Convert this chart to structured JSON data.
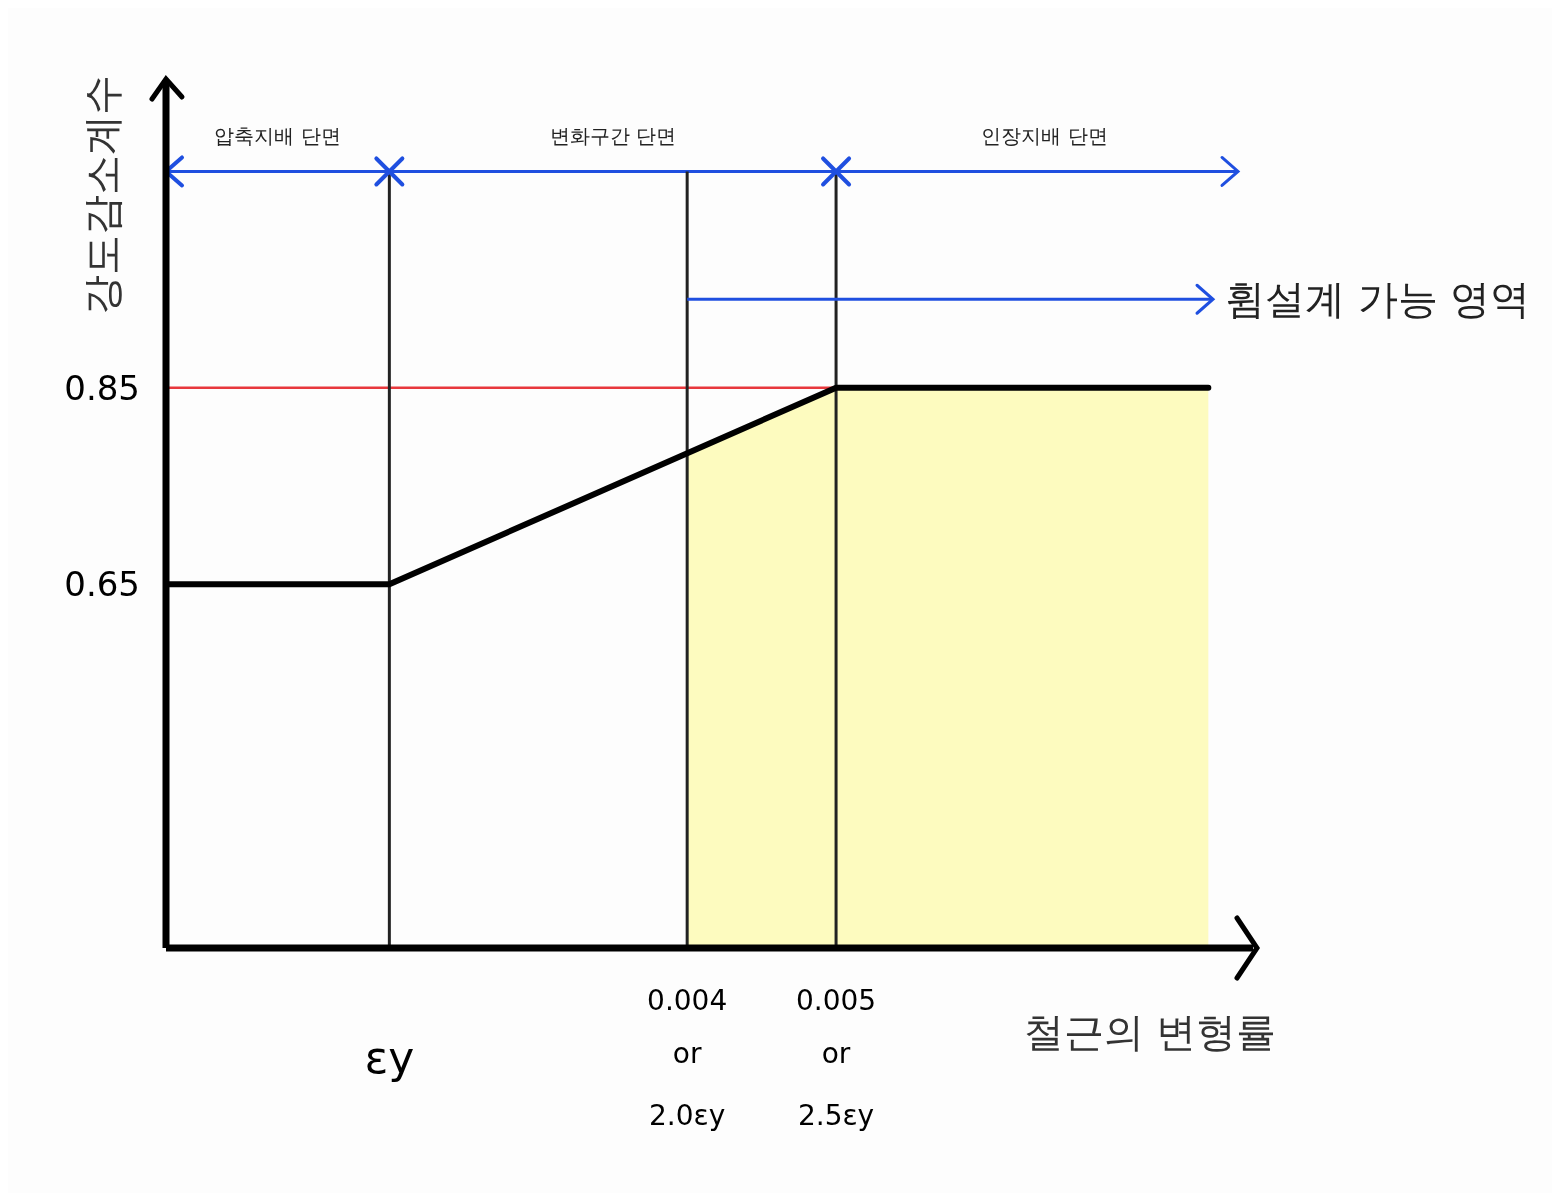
{
  "chart_data": {
    "type": "line",
    "xlabel": "철근의 변형률",
    "ylabel": "강도감소계수",
    "x": [
      0.0005,
      0.002,
      0.005,
      0.0075
    ],
    "series": [
      {
        "color": "#000000",
        "values": [
          0.65,
          0.65,
          0.85,
          0.85
        ]
      },
      {
        "type": "area",
        "color": "#fdfbbf",
        "x": [
          0.004,
          0.005,
          0.0075
        ],
        "values": [
          0.783,
          0.85,
          0.85
        ]
      }
    ],
    "xlim": [
      0.0005,
      0.0078
    ],
    "ylim": [
      0.28,
      1.16
    ],
    "xticks": [
      0.004,
      0.005
    ],
    "yticks": [
      0.65,
      0.85
    ],
    "ref_lines": [
      {
        "axis": "y",
        "value": 0.85,
        "color": "#e8383d"
      },
      {
        "axis": "y",
        "value": 1.07,
        "color": "#1f4fe0"
      },
      {
        "axis": "x",
        "value": 0.002,
        "color": "#222222"
      },
      {
        "axis": "x",
        "value": 0.004,
        "color": "#222222"
      },
      {
        "axis": "x",
        "value": 0.005,
        "color": "#222222"
      }
    ],
    "annotations": [
      "압축지배 단면",
      "변화구간 단면",
      "인장지배 단면",
      {
        "text": "휨설계 가능 영역",
        "x": 0.004,
        "y": 0.94
      },
      "εy",
      "or\n2.0εy",
      "or\n2.5εy"
    ],
    "grid": false,
    "marker": "none"
  }
}
